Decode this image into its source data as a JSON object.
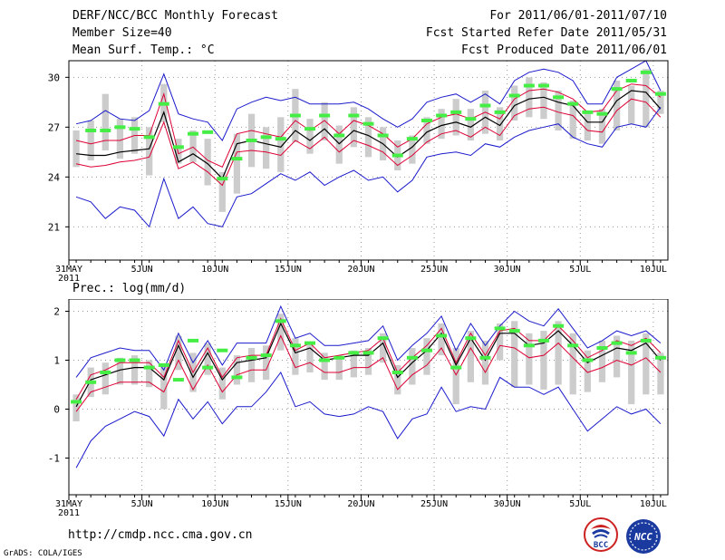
{
  "header": {
    "title": "DERF/NCC/BCC Monthly Forecast",
    "member_size": "Member Size=40",
    "variable_1": "Mean Surf. Temp.: °C",
    "period": "For 2011/06/01-2011/07/10",
    "started": "Fcst Started Refer Date 2011/05/31",
    "produced": "Fcst Produced Date 2011/06/01"
  },
  "panel2_label": "Prec.: log(mm/d)",
  "footer": {
    "url": "http://cmdp.ncc.cma.gov.cn",
    "grads": "GrADS: COLA/IGES",
    "logo_bcc": "BCC",
    "logo_ncc": "NCC"
  },
  "colors": {
    "ensemble_mean": "#000000",
    "spread": "#dd0033",
    "extremes": "#1a1acc",
    "member_box": "#cccccc",
    "observation_marker": "#44ee44",
    "grid": "#999999"
  },
  "chart_data": [
    {
      "type": "line",
      "title": "Mean Surf. Temp.: °C",
      "x": [
        0,
        1,
        2,
        3,
        4,
        5,
        6,
        7,
        8,
        9,
        10,
        11,
        12,
        13,
        14,
        15,
        16,
        17,
        18,
        19,
        20,
        21,
        22,
        23,
        24,
        25,
        26,
        27,
        28,
        29,
        30,
        31,
        32,
        33,
        34,
        35,
        36,
        37,
        38,
        39,
        40
      ],
      "xlim": [
        -0.5,
        40.5
      ],
      "ylim": [
        19,
        31
      ],
      "yticks": [
        21,
        24,
        27,
        30
      ],
      "xticks": [
        {
          "x": -0.5,
          "label": "31MAY",
          "sub": "2011"
        },
        {
          "x": 4.5,
          "label": "5JUN"
        },
        {
          "x": 9.5,
          "label": "10JUN"
        },
        {
          "x": 14.5,
          "label": "15JUN"
        },
        {
          "x": 19.5,
          "label": "20JUN"
        },
        {
          "x": 24.5,
          "label": "25JUN"
        },
        {
          "x": 29.5,
          "label": "30JUN"
        },
        {
          "x": 34.5,
          "label": "5JUL"
        },
        {
          "x": 39.5,
          "label": "10JUL"
        }
      ],
      "series": [
        {
          "name": "max",
          "color": "#1a1acc",
          "values": [
            27.2,
            27.4,
            28.0,
            27.5,
            27.4,
            28.0,
            30.2,
            27.8,
            27.5,
            27.3,
            26.2,
            28.1,
            28.5,
            28.8,
            28.6,
            28.8,
            28.4,
            28.4,
            28.4,
            28.5,
            28.1,
            27.5,
            27.0,
            27.5,
            28.5,
            28.8,
            29.0,
            28.5,
            29.0,
            28.4,
            29.8,
            30.3,
            30.5,
            30.3,
            29.8,
            28.4,
            28.4,
            30.0,
            30.5,
            31.0,
            29.2
          ]
        },
        {
          "name": "spread_upper",
          "color": "#dd0033",
          "values": [
            26.2,
            26.0,
            26.2,
            26.2,
            26.5,
            26.5,
            29.0,
            25.4,
            25.8,
            25.0,
            24.6,
            26.6,
            26.8,
            26.6,
            26.4,
            27.4,
            26.8,
            27.4,
            26.6,
            27.4,
            27.1,
            26.6,
            25.8,
            26.3,
            27.2,
            27.6,
            27.8,
            27.5,
            27.9,
            27.5,
            28.7,
            29.2,
            29.3,
            29.1,
            28.7,
            27.9,
            28.0,
            29.2,
            29.6,
            29.5,
            28.8
          ]
        },
        {
          "name": "ensemble_mean",
          "color": "#000000",
          "values": [
            25.4,
            25.3,
            25.3,
            25.5,
            25.6,
            25.7,
            27.9,
            24.9,
            25.4,
            24.8,
            23.9,
            26.0,
            26.2,
            26.0,
            25.8,
            26.8,
            26.2,
            26.9,
            26.0,
            26.8,
            26.5,
            26.0,
            25.2,
            25.8,
            26.7,
            27.1,
            27.3,
            27.0,
            27.6,
            27.1,
            28.3,
            28.7,
            28.8,
            28.5,
            28.3,
            27.3,
            27.3,
            28.6,
            29.2,
            29.1,
            28.1
          ]
        },
        {
          "name": "spread_lower",
          "color": "#dd0033",
          "values": [
            24.8,
            24.6,
            24.7,
            24.9,
            25.0,
            25.2,
            27.3,
            24.5,
            24.9,
            24.3,
            23.5,
            25.5,
            25.6,
            25.5,
            25.3,
            26.2,
            25.7,
            26.4,
            25.5,
            26.2,
            25.9,
            25.5,
            24.7,
            25.3,
            26.1,
            26.6,
            26.8,
            26.4,
            27.0,
            26.5,
            27.7,
            28.1,
            28.2,
            27.9,
            27.7,
            26.8,
            26.7,
            28.0,
            28.7,
            28.5,
            27.6
          ]
        },
        {
          "name": "min",
          "color": "#1a1acc",
          "values": [
            22.8,
            22.5,
            21.5,
            22.2,
            22.0,
            21.0,
            23.9,
            21.5,
            22.2,
            21.2,
            21.0,
            22.8,
            23.0,
            23.6,
            24.2,
            23.8,
            24.3,
            23.5,
            24.0,
            24.4,
            23.8,
            24.0,
            23.1,
            23.8,
            25.2,
            25.4,
            25.5,
            25.3,
            26.0,
            25.8,
            26.4,
            26.8,
            27.0,
            27.2,
            26.4,
            26.0,
            25.8,
            27.0,
            27.2,
            27.0,
            28.2
          ]
        }
      ],
      "boxes": [
        {
          "lo": 24.6,
          "hi": 26.8
        },
        {
          "lo": 25.0,
          "hi": 27.4
        },
        {
          "lo": 25.6,
          "hi": 29.0
        },
        {
          "lo": 25.1,
          "hi": 27.5
        },
        {
          "lo": 25.4,
          "hi": 27.6
        },
        {
          "lo": 24.1,
          "hi": 27.0
        },
        {
          "lo": 27.3,
          "hi": 29.6
        },
        {
          "lo": 24.8,
          "hi": 26.3
        },
        {
          "lo": 24.9,
          "hi": 26.8
        },
        {
          "lo": 23.5,
          "hi": 26.3
        },
        {
          "lo": 21.9,
          "hi": 24.3
        },
        {
          "lo": 23.0,
          "hi": 26.6
        },
        {
          "lo": 24.6,
          "hi": 27.8
        },
        {
          "lo": 24.5,
          "hi": 27.0
        },
        {
          "lo": 24.3,
          "hi": 27.6
        },
        {
          "lo": 26.1,
          "hi": 29.3
        },
        {
          "lo": 25.4,
          "hi": 27.5
        },
        {
          "lo": 26.2,
          "hi": 28.5
        },
        {
          "lo": 24.8,
          "hi": 27.1
        },
        {
          "lo": 25.8,
          "hi": 28.2
        },
        {
          "lo": 25.2,
          "hi": 27.6
        },
        {
          "lo": 25.0,
          "hi": 27.0
        },
        {
          "lo": 24.4,
          "hi": 26.2
        },
        {
          "lo": 24.8,
          "hi": 26.5
        },
        {
          "lo": 26.0,
          "hi": 27.6
        },
        {
          "lo": 26.3,
          "hi": 28.1
        },
        {
          "lo": 26.5,
          "hi": 28.7
        },
        {
          "lo": 26.2,
          "hi": 28.1
        },
        {
          "lo": 26.6,
          "hi": 29.2
        },
        {
          "lo": 26.2,
          "hi": 28.2
        },
        {
          "lo": 27.4,
          "hi": 29.5
        },
        {
          "lo": 27.6,
          "hi": 30.0
        },
        {
          "lo": 27.5,
          "hi": 29.7
        },
        {
          "lo": 26.8,
          "hi": 29.2
        },
        {
          "lo": 26.3,
          "hi": 28.6
        },
        {
          "lo": 26.2,
          "hi": 27.8
        },
        {
          "lo": 26.0,
          "hi": 28.1
        },
        {
          "lo": 26.8,
          "hi": 29.8
        },
        {
          "lo": 27.2,
          "hi": 29.5
        },
        {
          "lo": 27.0,
          "hi": 30.5
        },
        {
          "lo": 27.8,
          "hi": 29.2
        }
      ],
      "observations": [
        null,
        26.8,
        26.8,
        27.0,
        26.9,
        26.4,
        28.4,
        25.8,
        26.6,
        26.7,
        23.9,
        25.1,
        26.2,
        26.4,
        26.3,
        27.7,
        26.9,
        27.7,
        26.5,
        27.7,
        27.2,
        26.5,
        25.3,
        26.3,
        27.4,
        27.7,
        27.9,
        27.5,
        28.3,
        27.9,
        28.9,
        29.5,
        29.5,
        28.8,
        28.4,
        27.9,
        27.8,
        29.3,
        29.8,
        30.3,
        29.0
      ],
      "grid": true
    },
    {
      "type": "line",
      "title": "Prec.: log(mm/d)",
      "x": [
        0,
        1,
        2,
        3,
        4,
        5,
        6,
        7,
        8,
        9,
        10,
        11,
        12,
        13,
        14,
        15,
        16,
        17,
        18,
        19,
        20,
        21,
        22,
        23,
        24,
        25,
        26,
        27,
        28,
        29,
        30,
        31,
        32,
        33,
        34,
        35,
        36,
        37,
        38,
        39,
        40
      ],
      "xlim": [
        -0.5,
        40.5
      ],
      "ylim": [
        -1.75,
        2.25
      ],
      "yticks": [
        -1,
        0,
        1,
        2
      ],
      "xticks": [
        {
          "x": -0.5,
          "label": "31MAY",
          "sub": "2011"
        },
        {
          "x": 4.5,
          "label": "5JUN"
        },
        {
          "x": 9.5,
          "label": "10JUN"
        },
        {
          "x": 14.5,
          "label": "15JUN"
        },
        {
          "x": 19.5,
          "label": "20JUN"
        },
        {
          "x": 24.5,
          "label": "25JUN"
        },
        {
          "x": 29.5,
          "label": "30JUN"
        },
        {
          "x": 34.5,
          "label": "5JUL"
        },
        {
          "x": 39.5,
          "label": "10JUL"
        }
      ],
      "series": [
        {
          "name": "max",
          "color": "#1a1acc",
          "values": [
            0.65,
            1.05,
            1.15,
            1.25,
            1.2,
            1.2,
            0.8,
            1.55,
            0.95,
            1.4,
            0.9,
            1.35,
            1.35,
            1.35,
            2.1,
            1.45,
            1.55,
            1.3,
            1.3,
            1.35,
            1.4,
            1.7,
            1.0,
            1.3,
            1.55,
            1.9,
            1.2,
            1.75,
            1.3,
            1.7,
            2.0,
            1.8,
            1.7,
            2.05,
            1.65,
            1.25,
            1.4,
            1.6,
            1.5,
            1.6,
            1.35
          ]
        },
        {
          "name": "spread_upper",
          "color": "#dd0033",
          "values": [
            0.2,
            0.7,
            0.8,
            0.95,
            0.95,
            0.95,
            0.65,
            1.4,
            0.75,
            1.25,
            0.65,
            1.05,
            1.1,
            1.1,
            1.85,
            1.2,
            1.35,
            1.05,
            1.1,
            1.15,
            1.2,
            1.45,
            0.75,
            1.05,
            1.3,
            1.65,
            0.95,
            1.55,
            1.1,
            1.6,
            1.65,
            1.4,
            1.4,
            1.7,
            1.4,
            1.05,
            1.2,
            1.4,
            1.3,
            1.45,
            1.15
          ]
        },
        {
          "name": "ensemble_mean",
          "color": "#000000",
          "values": [
            0.05,
            0.6,
            0.7,
            0.8,
            0.85,
            0.85,
            0.6,
            1.3,
            0.65,
            1.15,
            0.6,
            0.95,
            1.0,
            1.05,
            1.75,
            1.15,
            1.25,
            1.0,
            1.05,
            1.1,
            1.1,
            1.35,
            0.65,
            0.95,
            1.2,
            1.55,
            0.9,
            1.45,
            1.0,
            1.55,
            1.55,
            1.3,
            1.35,
            1.6,
            1.3,
            0.95,
            1.1,
            1.25,
            1.2,
            1.35,
            1.0
          ]
        },
        {
          "name": "spread_lower",
          "color": "#dd0033",
          "values": [
            -0.05,
            0.35,
            0.45,
            0.55,
            0.55,
            0.55,
            0.35,
            1.0,
            0.4,
            0.9,
            0.35,
            0.7,
            0.8,
            0.8,
            1.5,
            0.85,
            0.95,
            0.75,
            0.75,
            0.85,
            0.85,
            1.05,
            0.4,
            0.7,
            0.9,
            1.25,
            0.7,
            1.25,
            0.75,
            1.3,
            1.25,
            1.05,
            1.1,
            1.35,
            1.05,
            0.75,
            0.85,
            1.0,
            0.9,
            1.05,
            0.75
          ]
        },
        {
          "name": "min",
          "color": "#1a1acc",
          "values": [
            -1.2,
            -0.65,
            -0.35,
            -0.2,
            -0.05,
            -0.15,
            -0.55,
            0.2,
            -0.2,
            0.15,
            -0.3,
            0.05,
            0.05,
            0.35,
            0.75,
            0.05,
            0.15,
            -0.1,
            -0.15,
            -0.1,
            0.05,
            -0.05,
            -0.6,
            -0.2,
            -0.1,
            0.45,
            -0.05,
            0.05,
            0.0,
            0.65,
            0.45,
            0.45,
            0.3,
            0.45,
            0.0,
            -0.45,
            -0.2,
            0.05,
            -0.1,
            0.0,
            -0.3
          ]
        }
      ],
      "boxes": [
        {
          "lo": -0.25,
          "hi": 0.3
        },
        {
          "lo": 0.25,
          "hi": 0.85
        },
        {
          "lo": 0.3,
          "hi": 0.95
        },
        {
          "lo": 0.5,
          "hi": 1.05
        },
        {
          "lo": 0.5,
          "hi": 1.1
        },
        {
          "lo": 0.45,
          "hi": 1.0
        },
        {
          "lo": 0.0,
          "hi": 0.9
        },
        {
          "lo": 0.8,
          "hi": 1.5
        },
        {
          "lo": 0.35,
          "hi": 1.15
        },
        {
          "lo": 0.7,
          "hi": 1.35
        },
        {
          "lo": 0.2,
          "hi": 0.85
        },
        {
          "lo": 0.5,
          "hi": 1.1
        },
        {
          "lo": 0.55,
          "hi": 1.25
        },
        {
          "lo": 0.6,
          "hi": 1.3
        },
        {
          "lo": 1.2,
          "hi": 1.95
        },
        {
          "lo": 0.7,
          "hi": 1.45
        },
        {
          "lo": 0.75,
          "hi": 1.35
        },
        {
          "lo": 0.6,
          "hi": 1.15
        },
        {
          "lo": 0.6,
          "hi": 1.1
        },
        {
          "lo": 0.65,
          "hi": 1.2
        },
        {
          "lo": 0.7,
          "hi": 1.25
        },
        {
          "lo": 0.95,
          "hi": 1.55
        },
        {
          "lo": 0.3,
          "hi": 0.9
        },
        {
          "lo": 0.5,
          "hi": 1.25
        },
        {
          "lo": 0.7,
          "hi": 1.45
        },
        {
          "lo": 1.1,
          "hi": 1.75
        },
        {
          "lo": 0.1,
          "hi": 1.25
        },
        {
          "lo": 0.55,
          "hi": 1.6
        },
        {
          "lo": 0.5,
          "hi": 1.4
        },
        {
          "lo": 1.0,
          "hi": 1.75
        },
        {
          "lo": 0.45,
          "hi": 1.8
        },
        {
          "lo": 0.5,
          "hi": 1.55
        },
        {
          "lo": 0.4,
          "hi": 1.6
        },
        {
          "lo": 0.5,
          "hi": 1.8
        },
        {
          "lo": 0.3,
          "hi": 1.55
        },
        {
          "lo": 0.35,
          "hi": 1.2
        },
        {
          "lo": 0.55,
          "hi": 1.4
        },
        {
          "lo": 0.65,
          "hi": 1.5
        },
        {
          "lo": 0.1,
          "hi": 1.4
        },
        {
          "lo": 0.3,
          "hi": 1.55
        },
        {
          "lo": 0.3,
          "hi": 1.15
        }
      ],
      "observations": [
        0.15,
        0.55,
        0.75,
        1.0,
        1.0,
        0.85,
        0.9,
        0.6,
        1.4,
        0.85,
        1.2,
        0.65,
        1.05,
        1.1,
        1.8,
        1.3,
        1.35,
        1.0,
        1.05,
        1.15,
        1.15,
        1.45,
        0.75,
        1.05,
        1.2,
        1.5,
        0.85,
        1.45,
        1.05,
        1.65,
        1.6,
        1.3,
        1.4,
        1.7,
        1.3,
        1.0,
        1.25,
        1.35,
        1.15,
        1.4,
        1.05
      ],
      "grid": true
    }
  ]
}
